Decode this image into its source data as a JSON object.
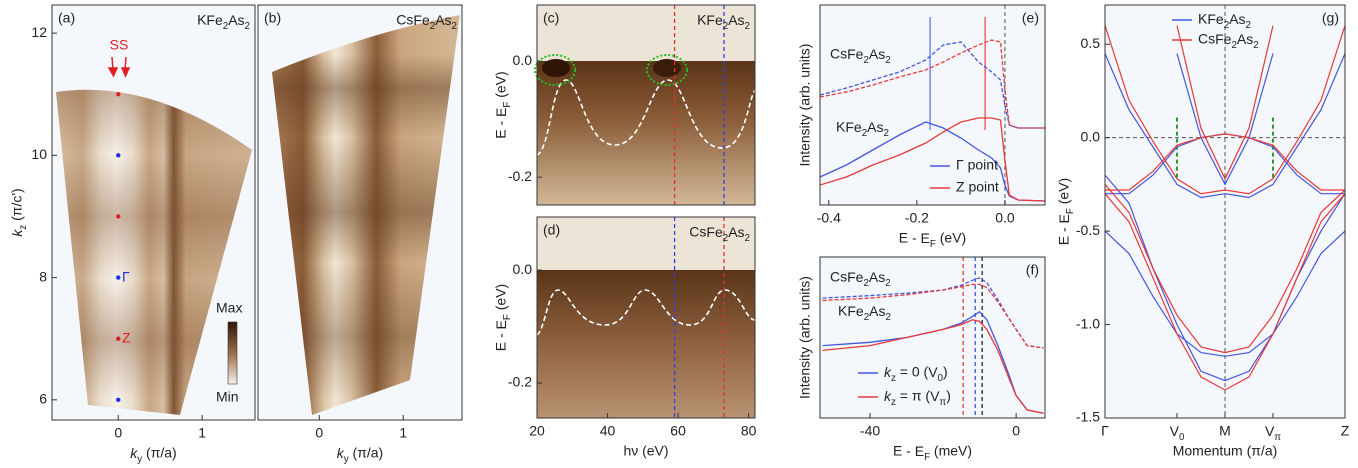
{
  "chart_data": [
    {
      "type": "heatmap",
      "panel": "(a)",
      "label": "KFe2As2",
      "xlabel": "ky (π/a)",
      "ylabel": "kz (π/c')",
      "xlim": [
        -0.79,
        1.63
      ],
      "ylim": [
        5.67,
        12.46
      ],
      "xticks": [
        0,
        1
      ],
      "yticks": [
        6,
        8,
        10,
        12
      ],
      "ss_label": "SS",
      "gamma_label": "Γ",
      "z_label": "Z",
      "colorbar": {
        "max": "Max",
        "min": "Min"
      },
      "points": {
        "x": [
          0,
          0,
          0,
          0,
          0,
          0
        ],
        "y": [
          11,
          10,
          9,
          8,
          7,
          6
        ],
        "colors": [
          "#e02020",
          "#2030e0",
          "#e02020",
          "#2030e0",
          "#e02020",
          "#2030e0"
        ]
      }
    },
    {
      "type": "heatmap",
      "panel": "(b)",
      "label": "CsFe2As2",
      "xlabel": "ky (π/a)",
      "xlim": [
        -0.73,
        1.7
      ],
      "ylim": [
        5.67,
        12.46
      ],
      "xticks": [
        0,
        1
      ]
    },
    {
      "type": "heatmap",
      "panel": "(c)",
      "label": "KFe2As2",
      "ylabel": "E - EF (eV)",
      "xlim": [
        20,
        81.8
      ],
      "ylim": [
        -0.248,
        0.097
      ],
      "yticks": [
        {
          "value": 0,
          "label": "0.0"
        },
        -0.2
      ],
      "vlines": [
        {
          "x": 59,
          "color": "#e03030"
        },
        {
          "x": 73,
          "color": "#3040e0"
        }
      ]
    },
    {
      "type": "heatmap",
      "panel": "(d)",
      "label": "CsFe2As2",
      "ylabel": "E - EF (eV)",
      "xlabel": "hν (eV)",
      "xlim": [
        20,
        81.8
      ],
      "ylim": [
        -0.262,
        0.094
      ],
      "xticks": [
        20,
        40,
        60,
        80
      ],
      "yticks": [
        {
          "value": 0,
          "label": "0.0"
        },
        -0.2
      ],
      "vlines": [
        {
          "x": 59,
          "color": "#3040e0"
        },
        {
          "x": 73,
          "color": "#e03030"
        }
      ]
    },
    {
      "type": "line",
      "panel": "(e)",
      "xlabel": "E - EF (eV)",
      "ylabel": "Intensity (arb. units)",
      "xlim": [
        -0.42,
        0.091
      ],
      "ylim": [
        0,
        10
      ],
      "xticks": [
        -0.4,
        -0.2,
        {
          "value": 0,
          "label": "0.0"
        }
      ],
      "cs_label": "CsFe2As2",
      "k_label": "KFe2As2",
      "x": [
        -0.42,
        -0.36,
        -0.3,
        -0.24,
        -0.18,
        -0.14,
        -0.1,
        -0.06,
        -0.03,
        -0.01,
        0.0,
        0.01,
        0.03,
        0.09
      ],
      "series": [
        {
          "name": "Γ point",
          "color": "#4455e0",
          "values": [
            1.4,
            2.0,
            2.75,
            3.5,
            4.15,
            3.85,
            3.35,
            2.75,
            2.35,
            1.85,
            1.0,
            0.45,
            0.25,
            0.2
          ]
        },
        {
          "name": "Z point",
          "color": "#e83838",
          "values": [
            1.0,
            1.4,
            2.0,
            2.5,
            3.1,
            3.65,
            4.15,
            4.35,
            4.35,
            4.25,
            2.25,
            0.5,
            0.25,
            0.2
          ]
        },
        {
          "color": "#4455e0",
          "dashed": true,
          "values": [
            5.5,
            5.85,
            6.25,
            6.65,
            7.25,
            8.0,
            8.15,
            7.15,
            6.65,
            6.25,
            5.0,
            4.0,
            3.85,
            3.85
          ]
        },
        {
          "color": "#e83838",
          "dashed": true,
          "values": [
            5.4,
            5.65,
            6.0,
            6.4,
            6.75,
            7.15,
            7.6,
            8.0,
            8.25,
            8.15,
            5.75,
            4.0,
            3.85,
            3.85
          ]
        }
      ],
      "vlines": [
        {
          "x": -0.17,
          "color": "#6a78e6"
        },
        {
          "x": -0.045,
          "color": "#e85050"
        },
        {
          "x": 0,
          "color": "#777777"
        }
      ]
    },
    {
      "type": "line",
      "panel": "(f)",
      "xlabel": "E - EF (meV)",
      "ylabel": "Intensity (arb. units)",
      "xlim": [
        -53.7,
        7.9
      ],
      "ylim": [
        0,
        10
      ],
      "xticks": [
        -40,
        0
      ],
      "cs_label": "CsFe2As2",
      "k_label": "KFe2As2",
      "x": [
        -53,
        -40,
        -30,
        -20,
        -15,
        -12,
        -10,
        -8,
        -5,
        -2,
        0,
        3,
        7.5
      ],
      "series": [
        {
          "name": "kz = 0 (V0)",
          "color": "#4455e0",
          "values": [
            4.5,
            4.7,
            5.0,
            5.5,
            5.9,
            6.3,
            6.6,
            6.1,
            4.5,
            2.7,
            1.4,
            0.5,
            0.3
          ]
        },
        {
          "name": "kz = π (Vπ)",
          "color": "#e83838",
          "values": [
            4.2,
            4.5,
            5.0,
            5.5,
            5.8,
            6.1,
            6.0,
            5.5,
            4.2,
            2.5,
            1.4,
            0.5,
            0.3
          ]
        },
        {
          "color": "#4455e0",
          "dashed": true,
          "values": [
            7.45,
            7.6,
            7.75,
            7.95,
            8.25,
            8.55,
            8.7,
            8.4,
            7.35,
            6.2,
            5.5,
            4.5,
            4.35
          ]
        },
        {
          "color": "#e83838",
          "dashed": true,
          "values": [
            7.3,
            7.45,
            7.65,
            7.95,
            8.15,
            8.3,
            8.3,
            8.1,
            7.2,
            6.2,
            5.5,
            4.5,
            4.35
          ]
        }
      ],
      "vlines": [
        {
          "x": -14.5,
          "color": "#e83838"
        },
        {
          "x": -11.2,
          "color": "#4455e0"
        },
        {
          "x": -9.3,
          "color": "#222222"
        }
      ]
    },
    {
      "type": "bands",
      "panel": "(g)",
      "xlabel": "Momentum (π/a)",
      "ylabel": "E - EF (eV)",
      "xlim": [
        0,
        2
      ],
      "ylim": [
        -1.5,
        0.71
      ],
      "xticks": [
        {
          "value": 0,
          "label": "Γ"
        },
        {
          "value": 0.6,
          "label": "V0"
        },
        {
          "value": 1,
          "label": "M"
        },
        {
          "value": 1.4,
          "label": "Vπ"
        },
        {
          "value": 2,
          "label": "Z"
        }
      ],
      "yticks": [
        0.5,
        {
          "value": 0,
          "label": "0.0"
        },
        -0.5,
        {
          "value": -1,
          "label": "-1.0"
        },
        -1.5
      ],
      "x": [
        0,
        0.2,
        0.4,
        0.6,
        0.8,
        1.0,
        1.2,
        1.4,
        1.6,
        1.8,
        2.0
      ],
      "series": [
        {
          "name": "KFe2As2",
          "color": "#4455e0",
          "bands": [
            [
              -0.5,
              -0.62,
              -0.85,
              -1.05,
              -1.15,
              -1.17,
              -1.15,
              -1.05,
              -0.85,
              -0.62,
              -0.5
            ],
            [
              -0.3,
              -0.3,
              -0.2,
              -0.05,
              0.0,
              0.02,
              0.0,
              -0.05,
              -0.2,
              -0.3,
              -0.3
            ],
            [
              0.45,
              0.15,
              -0.05,
              -0.25,
              -0.32,
              -0.3,
              -0.32,
              -0.25,
              -0.05,
              0.15,
              0.45
            ],
            [
              null,
              null,
              null,
              0.45,
              0.0,
              -0.25,
              0.0,
              0.45,
              null,
              null,
              null
            ],
            [
              -0.2,
              -0.35,
              -0.7,
              -1.0,
              -1.25,
              -1.3,
              -1.25,
              -1.05,
              -0.75,
              -0.5,
              -0.3
            ]
          ]
        },
        {
          "name": "CsFe2As2",
          "color": "#e83838",
          "bands": [
            [
              -0.25,
              -0.4,
              -0.7,
              -0.95,
              -1.12,
              -1.15,
              -1.12,
              -0.95,
              -0.7,
              -0.4,
              -0.28
            ],
            [
              -0.28,
              -0.28,
              -0.18,
              -0.04,
              0.0,
              0.02,
              0.0,
              -0.04,
              -0.18,
              -0.28,
              -0.28
            ],
            [
              0.6,
              0.2,
              -0.02,
              -0.22,
              -0.3,
              -0.28,
              -0.3,
              -0.22,
              -0.02,
              0.2,
              0.6
            ],
            [
              null,
              null,
              null,
              0.6,
              0.05,
              -0.22,
              0.05,
              0.6,
              null,
              null,
              null
            ],
            [
              -0.3,
              -0.45,
              -0.75,
              -1.05,
              -1.28,
              -1.35,
              -1.28,
              -1.05,
              -0.75,
              -0.45,
              -0.3
            ]
          ]
        }
      ]
    }
  ]
}
